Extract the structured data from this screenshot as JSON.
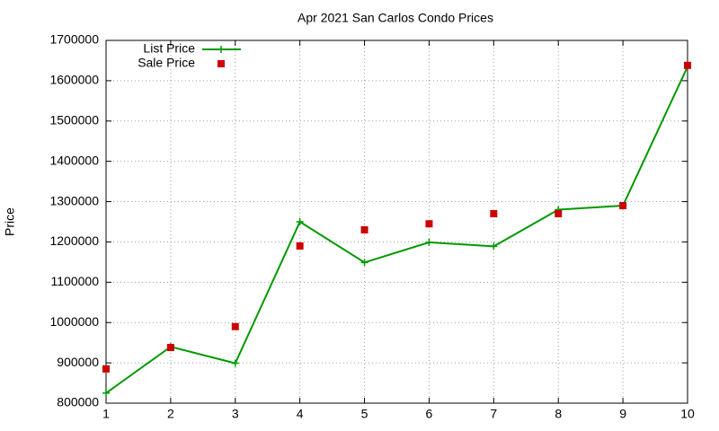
{
  "chart_data": {
    "type": "line",
    "title": "Apr 2021 San Carlos Condo Prices",
    "y_label": "Price",
    "x": [
      1,
      2,
      3,
      4,
      5,
      6,
      7,
      8,
      9,
      10
    ],
    "series": [
      {
        "name": "List Price",
        "color": "#009900",
        "line": true,
        "marker": "plus",
        "values": [
          825000,
          940000,
          899000,
          1250000,
          1149000,
          1199000,
          1189000,
          1280000,
          1290000,
          1635000
        ]
      },
      {
        "name": "Sale Price",
        "color": "#cc0000",
        "line": false,
        "marker": "square",
        "values": [
          885000,
          938000,
          990000,
          1190000,
          1230000,
          1245000,
          1270000,
          1270000,
          1290000,
          1638000
        ]
      }
    ],
    "xlim": [
      1,
      10
    ],
    "xticks": [
      1,
      2,
      3,
      4,
      5,
      6,
      7,
      8,
      9,
      10
    ],
    "ylim": [
      800000,
      1700000
    ],
    "yticks": [
      800000,
      900000,
      1000000,
      1100000,
      1200000,
      1300000,
      1400000,
      1500000,
      1600000,
      1700000
    ],
    "grid": true,
    "legend": "top-left"
  }
}
